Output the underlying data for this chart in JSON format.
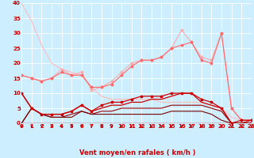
{
  "bg_color": "#cceeff",
  "grid_color": "#ffffff",
  "xlabel": "Vent moyen/en rafales ( km/h )",
  "xlabel_color": "#cc0000",
  "xlabel_fontsize": 6,
  "tick_color": "#cc0000",
  "tick_fontsize": 5,
  "ylim": [
    0,
    40
  ],
  "xlim": [
    0,
    23
  ],
  "yticks": [
    0,
    5,
    10,
    15,
    20,
    25,
    30,
    35,
    40
  ],
  "xticks": [
    0,
    1,
    2,
    3,
    4,
    5,
    6,
    7,
    8,
    9,
    10,
    11,
    12,
    13,
    14,
    15,
    16,
    17,
    18,
    19,
    20,
    21,
    22,
    23
  ],
  "series": [
    {
      "x": [
        0,
        1,
        2,
        3,
        4,
        5,
        6,
        7,
        8,
        9,
        10,
        11,
        12,
        13,
        14,
        15,
        16,
        17,
        18,
        19,
        20,
        21,
        22,
        23
      ],
      "y": [
        40,
        34,
        26,
        20,
        18,
        17,
        16,
        12,
        9,
        8,
        8,
        8,
        8,
        8,
        7,
        7,
        7,
        7,
        7,
        6,
        5,
        2,
        1,
        1
      ],
      "color": "#ffbbbb",
      "lw": 0.8,
      "marker": null,
      "ms": 0
    },
    {
      "x": [
        0,
        1,
        2,
        3,
        4,
        5,
        6,
        7,
        8,
        9,
        10,
        11,
        12,
        13,
        14,
        15,
        16,
        17,
        18,
        19,
        20,
        21,
        22,
        23
      ],
      "y": [
        16,
        15,
        14,
        15,
        18,
        16,
        17,
        11,
        12,
        14,
        17,
        20,
        21,
        21,
        22,
        25,
        31,
        27,
        22,
        21,
        30,
        5,
        1,
        1
      ],
      "color": "#ffaaaa",
      "lw": 0.8,
      "marker": "D",
      "ms": 1.5
    },
    {
      "x": [
        0,
        1,
        2,
        3,
        4,
        5,
        6,
        7,
        8,
        9,
        10,
        11,
        12,
        13,
        14,
        15,
        16,
        17,
        18,
        19,
        20,
        21,
        22,
        23
      ],
      "y": [
        16,
        15,
        14,
        15,
        17,
        16,
        16,
        12,
        12,
        13,
        16,
        19,
        21,
        21,
        22,
        25,
        26,
        27,
        21,
        20,
        30,
        5,
        1,
        1
      ],
      "color": "#ff6666",
      "lw": 0.8,
      "marker": "D",
      "ms": 1.5
    },
    {
      "x": [
        0,
        1,
        2,
        3,
        4,
        5,
        6,
        7,
        8,
        9,
        10,
        11,
        12,
        13,
        14,
        15,
        16,
        17,
        18,
        19,
        20,
        21,
        22,
        23
      ],
      "y": [
        10,
        5,
        3,
        3,
        3,
        4,
        6,
        4,
        6,
        7,
        7,
        8,
        9,
        9,
        9,
        10,
        10,
        10,
        8,
        7,
        5,
        0,
        1,
        1
      ],
      "color": "#cc0000",
      "lw": 0.9,
      "marker": "*",
      "ms": 2.5
    },
    {
      "x": [
        0,
        1,
        2,
        3,
        4,
        5,
        6,
        7,
        8,
        9,
        10,
        11,
        12,
        13,
        14,
        15,
        16,
        17,
        18,
        19,
        20,
        21,
        22,
        23
      ],
      "y": [
        10,
        5,
        3,
        3,
        3,
        4,
        6,
        4,
        5,
        6,
        6,
        7,
        7,
        8,
        8,
        9,
        10,
        10,
        7,
        6,
        5,
        0,
        0,
        1
      ],
      "color": "#cc0000",
      "lw": 0.9,
      "marker": null,
      "ms": 0
    },
    {
      "x": [
        0,
        1,
        2,
        3,
        4,
        5,
        6,
        7,
        8,
        9,
        10,
        11,
        12,
        13,
        14,
        15,
        16,
        17,
        18,
        19,
        20,
        21,
        22,
        23
      ],
      "y": [
        0,
        5,
        3,
        2,
        2,
        3,
        4,
        3,
        4,
        4,
        5,
        5,
        5,
        5,
        5,
        6,
        6,
        6,
        6,
        5,
        4,
        0,
        0,
        0
      ],
      "color": "#990000",
      "lw": 0.8,
      "marker": null,
      "ms": 0
    },
    {
      "x": [
        0,
        1,
        2,
        3,
        4,
        5,
        6,
        7,
        8,
        9,
        10,
        11,
        12,
        13,
        14,
        15,
        16,
        17,
        18,
        19,
        20,
        21,
        22,
        23
      ],
      "y": [
        0,
        5,
        3,
        2,
        2,
        2,
        4,
        3,
        3,
        3,
        3,
        3,
        3,
        3,
        3,
        4,
        4,
        4,
        4,
        3,
        1,
        0,
        0,
        0
      ],
      "color": "#770000",
      "lw": 0.8,
      "marker": null,
      "ms": 0
    }
  ],
  "arrow_color": "#cc0000",
  "spine_color": "#cc0000"
}
